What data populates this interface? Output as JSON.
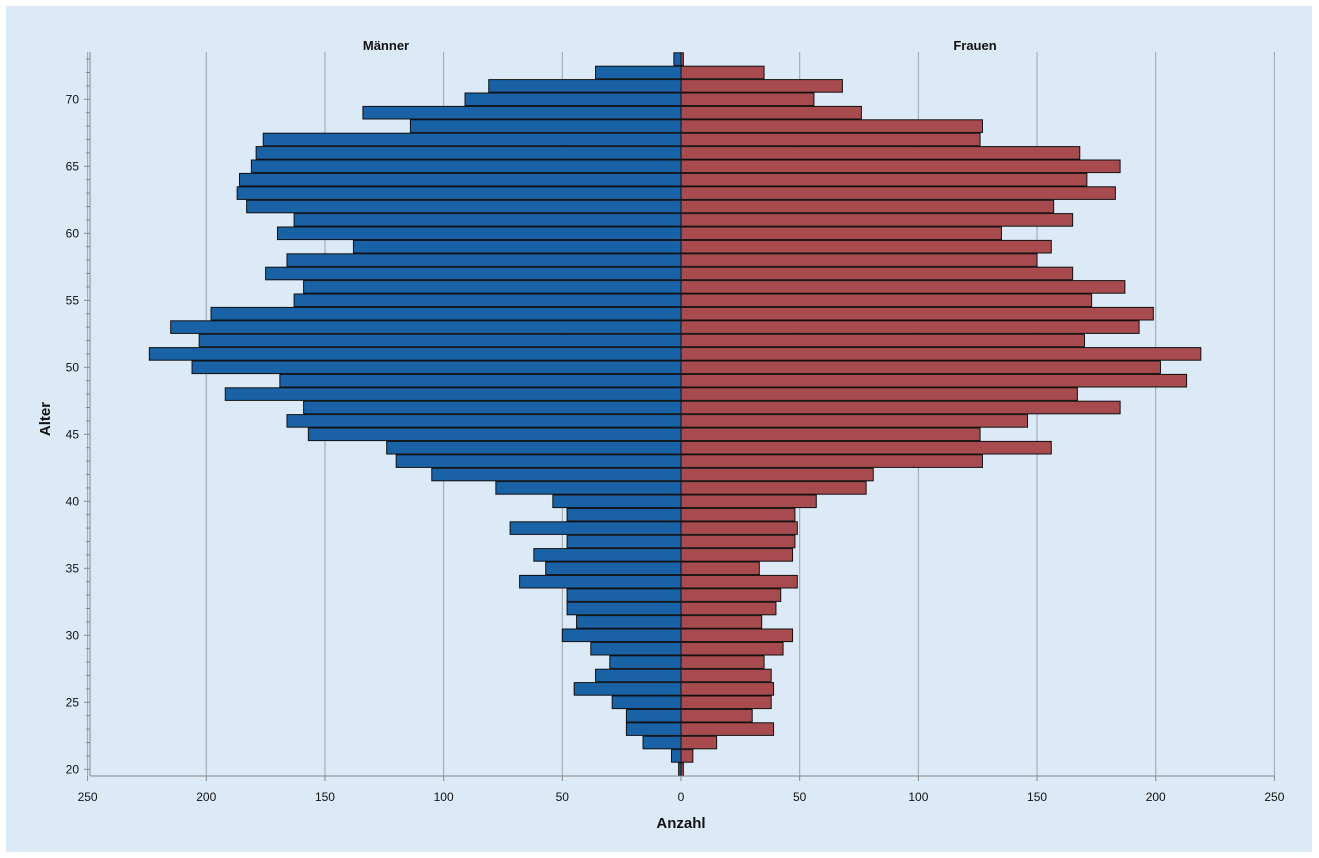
{
  "chart_data": {
    "type": "bar",
    "orientation": "horizontal",
    "xlabel": "Anzahl",
    "ylabel": "Alter",
    "xlim": [
      -250,
      250
    ],
    "xticks": [
      250,
      200,
      150,
      100,
      50,
      0,
      50,
      100,
      150,
      200,
      250
    ],
    "yticks": [
      20,
      25,
      30,
      35,
      40,
      45,
      50,
      55,
      60,
      65,
      70
    ],
    "grid": true,
    "ages": [
      20,
      21,
      22,
      23,
      24,
      25,
      26,
      27,
      28,
      29,
      30,
      31,
      32,
      33,
      34,
      35,
      36,
      37,
      38,
      39,
      40,
      41,
      42,
      43,
      44,
      45,
      46,
      47,
      48,
      49,
      50,
      51,
      52,
      53,
      54,
      55,
      56,
      57,
      58,
      59,
      60,
      61,
      62,
      63,
      64,
      65,
      66,
      67,
      68,
      69,
      70,
      71,
      72,
      73
    ],
    "series": [
      {
        "name": "Männer",
        "color": "#1a62a6",
        "values": [
          1,
          4,
          16,
          23,
          23,
          29,
          45,
          36,
          30,
          38,
          50,
          44,
          48,
          48,
          68,
          57,
          62,
          48,
          72,
          48,
          54,
          78,
          105,
          120,
          124,
          157,
          166,
          159,
          192,
          169,
          206,
          224,
          203,
          215,
          198,
          163,
          159,
          175,
          166,
          138,
          170,
          163,
          183,
          187,
          186,
          181,
          179,
          176,
          114,
          134,
          91,
          81,
          36,
          3
        ]
      },
      {
        "name": "Frauen",
        "color": "#a84b4e",
        "values": [
          1,
          5,
          15,
          39,
          30,
          38,
          39,
          38,
          35,
          43,
          47,
          34,
          40,
          42,
          49,
          33,
          47,
          48,
          49,
          48,
          57,
          78,
          81,
          127,
          156,
          126,
          146,
          185,
          167,
          213,
          202,
          219,
          170,
          193,
          199,
          173,
          187,
          165,
          150,
          156,
          135,
          165,
          157,
          183,
          171,
          185,
          168,
          126,
          127,
          76,
          56,
          68,
          35,
          1
        ]
      }
    ]
  }
}
